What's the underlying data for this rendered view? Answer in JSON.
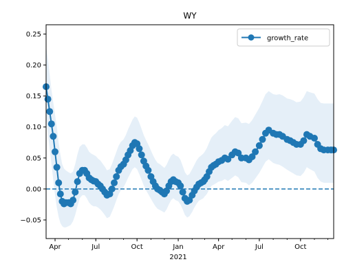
{
  "chart_data": {
    "type": "line",
    "title": "WY",
    "xlabel": "2021",
    "ylabel": "",
    "ylim": [
      -0.08,
      0.265
    ],
    "x_range": [
      "2020-03-12",
      "2021-12-14"
    ],
    "x_ticks": [
      {
        "date": "2020-04-01",
        "label": "Apr"
      },
      {
        "date": "2020-07-01",
        "label": "Jul"
      },
      {
        "date": "2020-10-01",
        "label": "Oct"
      },
      {
        "date": "2021-01-01",
        "label": "Jan"
      },
      {
        "date": "2021-04-01",
        "label": "Apr"
      },
      {
        "date": "2021-07-01",
        "label": "Jul"
      },
      {
        "date": "2021-10-01",
        "label": "Oct"
      }
    ],
    "y_ticks": [
      -0.05,
      0.0,
      0.05,
      0.1,
      0.15,
      0.2,
      0.25
    ],
    "y_tick_labels": [
      "−0.05",
      "0.00",
      "0.05",
      "0.10",
      "0.15",
      "0.20",
      "0.25"
    ],
    "reference_line": {
      "y": 0,
      "style": "dashed"
    },
    "legend": {
      "position": "top-right"
    },
    "colors": {
      "series": "#1f77b4",
      "band": "#cfe2f3"
    },
    "series": [
      {
        "name": "growth_rate",
        "x": [
          "2020-03-12",
          "2020-03-16",
          "2020-03-20",
          "2020-03-24",
          "2020-03-28",
          "2020-04-01",
          "2020-04-05",
          "2020-04-09",
          "2020-04-13",
          "2020-04-17",
          "2020-04-21",
          "2020-04-25",
          "2020-05-01",
          "2020-05-06",
          "2020-05-11",
          "2020-05-16",
          "2020-05-21",
          "2020-05-26",
          "2020-06-01",
          "2020-06-06",
          "2020-06-11",
          "2020-06-16",
          "2020-06-21",
          "2020-06-26",
          "2020-07-01",
          "2020-07-06",
          "2020-07-11",
          "2020-07-16",
          "2020-07-21",
          "2020-07-26",
          "2020-08-01",
          "2020-08-06",
          "2020-08-11",
          "2020-08-16",
          "2020-08-21",
          "2020-08-26",
          "2020-09-01",
          "2020-09-06",
          "2020-09-11",
          "2020-09-16",
          "2020-09-21",
          "2020-09-26",
          "2020-10-01",
          "2020-10-06",
          "2020-10-11",
          "2020-10-16",
          "2020-10-21",
          "2020-10-26",
          "2020-11-01",
          "2020-11-06",
          "2020-11-11",
          "2020-11-16",
          "2020-11-21",
          "2020-11-26",
          "2020-12-01",
          "2020-12-06",
          "2020-12-11",
          "2020-12-16",
          "2020-12-21",
          "2020-12-26",
          "2021-01-01",
          "2021-01-06",
          "2021-01-11",
          "2021-01-16",
          "2021-01-21",
          "2021-01-26",
          "2021-02-01",
          "2021-02-06",
          "2021-02-11",
          "2021-02-16",
          "2021-02-21",
          "2021-02-26",
          "2021-03-01",
          "2021-03-06",
          "2021-03-11",
          "2021-03-16",
          "2021-03-21",
          "2021-03-26",
          "2021-04-01",
          "2021-04-08",
          "2021-04-15",
          "2021-04-22",
          "2021-05-01",
          "2021-05-08",
          "2021-05-15",
          "2021-05-22",
          "2021-06-01",
          "2021-06-08",
          "2021-06-15",
          "2021-06-22",
          "2021-07-01",
          "2021-07-08",
          "2021-07-15",
          "2021-07-22",
          "2021-08-01",
          "2021-08-08",
          "2021-08-15",
          "2021-08-22",
          "2021-09-01",
          "2021-09-08",
          "2021-09-15",
          "2021-09-22",
          "2021-10-01",
          "2021-10-08",
          "2021-10-15",
          "2021-10-22",
          "2021-11-01",
          "2021-11-08",
          "2021-11-15",
          "2021-11-22",
          "2021-12-01",
          "2021-12-08",
          "2021-12-14"
        ],
        "values": [
          0.165,
          0.145,
          0.125,
          0.105,
          0.085,
          0.06,
          0.035,
          0.01,
          -0.008,
          -0.02,
          -0.024,
          -0.022,
          -0.022,
          -0.024,
          -0.018,
          -0.005,
          0.012,
          0.025,
          0.03,
          0.03,
          0.025,
          0.018,
          0.015,
          0.013,
          0.012,
          0.008,
          0.005,
          0.0,
          -0.005,
          -0.01,
          -0.008,
          0.0,
          0.01,
          0.02,
          0.03,
          0.036,
          0.04,
          0.047,
          0.055,
          0.062,
          0.07,
          0.075,
          0.073,
          0.065,
          0.055,
          0.045,
          0.037,
          0.03,
          0.02,
          0.012,
          0.005,
          0.0,
          -0.002,
          -0.005,
          -0.008,
          -0.003,
          0.005,
          0.012,
          0.015,
          0.012,
          0.01,
          0.005,
          -0.005,
          -0.015,
          -0.02,
          -0.018,
          -0.01,
          -0.003,
          0.003,
          0.008,
          0.01,
          0.012,
          0.015,
          0.02,
          0.028,
          0.035,
          0.038,
          0.04,
          0.044,
          0.046,
          0.05,
          0.048,
          0.055,
          0.06,
          0.058,
          0.05,
          0.05,
          0.047,
          0.052,
          0.06,
          0.07,
          0.08,
          0.09,
          0.095,
          0.09,
          0.088,
          0.088,
          0.085,
          0.08,
          0.078,
          0.075,
          0.072,
          0.072,
          0.078,
          0.088,
          0.085,
          0.082,
          0.072,
          0.065,
          0.063,
          0.063,
          0.063,
          0.063
        ],
        "lower": [
          0.115,
          0.09,
          0.065,
          0.04,
          0.015,
          -0.01,
          -0.03,
          -0.045,
          -0.055,
          -0.06,
          -0.062,
          -0.062,
          -0.06,
          -0.058,
          -0.052,
          -0.042,
          -0.028,
          -0.015,
          -0.01,
          -0.01,
          -0.015,
          -0.022,
          -0.026,
          -0.028,
          -0.028,
          -0.03,
          -0.033,
          -0.037,
          -0.042,
          -0.047,
          -0.045,
          -0.037,
          -0.028,
          -0.018,
          -0.008,
          -0.002,
          0.003,
          0.01,
          0.018,
          0.025,
          0.032,
          0.035,
          0.032,
          0.024,
          0.015,
          0.006,
          -0.002,
          -0.008,
          -0.016,
          -0.022,
          -0.028,
          -0.032,
          -0.034,
          -0.036,
          -0.038,
          -0.033,
          -0.025,
          -0.018,
          -0.015,
          -0.018,
          -0.02,
          -0.025,
          -0.033,
          -0.042,
          -0.046,
          -0.044,
          -0.037,
          -0.03,
          -0.024,
          -0.019,
          -0.017,
          -0.015,
          -0.012,
          -0.008,
          -0.001,
          0.005,
          0.007,
          0.009,
          0.012,
          0.013,
          0.016,
          0.013,
          0.018,
          0.022,
          0.019,
          0.011,
          0.01,
          0.006,
          0.01,
          0.017,
          0.026,
          0.035,
          0.044,
          0.048,
          0.042,
          0.04,
          0.039,
          0.036,
          0.031,
          0.028,
          0.025,
          0.022,
          0.021,
          0.026,
          0.035,
          0.032,
          0.028,
          0.018,
          0.012,
          0.01,
          0.01,
          0.01,
          0.01
        ],
        "upper": [
          0.23,
          0.21,
          0.185,
          0.16,
          0.14,
          0.12,
          0.1,
          0.075,
          0.055,
          0.04,
          0.033,
          0.03,
          0.027,
          0.025,
          0.028,
          0.04,
          0.056,
          0.068,
          0.072,
          0.072,
          0.067,
          0.06,
          0.057,
          0.055,
          0.053,
          0.049,
          0.046,
          0.041,
          0.036,
          0.03,
          0.032,
          0.04,
          0.05,
          0.06,
          0.07,
          0.076,
          0.08,
          0.087,
          0.096,
          0.104,
          0.112,
          0.117,
          0.115,
          0.107,
          0.097,
          0.087,
          0.079,
          0.072,
          0.062,
          0.054,
          0.047,
          0.042,
          0.04,
          0.037,
          0.034,
          0.039,
          0.047,
          0.054,
          0.057,
          0.054,
          0.052,
          0.047,
          0.037,
          0.027,
          0.022,
          0.024,
          0.032,
          0.039,
          0.046,
          0.051,
          0.054,
          0.057,
          0.06,
          0.066,
          0.075,
          0.083,
          0.087,
          0.09,
          0.095,
          0.098,
          0.103,
          0.101,
          0.11,
          0.116,
          0.114,
          0.106,
          0.107,
          0.105,
          0.111,
          0.12,
          0.131,
          0.142,
          0.153,
          0.158,
          0.153,
          0.152,
          0.153,
          0.151,
          0.146,
          0.145,
          0.143,
          0.14,
          0.141,
          0.148,
          0.158,
          0.156,
          0.154,
          0.145,
          0.139,
          0.138,
          0.138,
          0.138,
          0.138
        ]
      }
    ]
  }
}
